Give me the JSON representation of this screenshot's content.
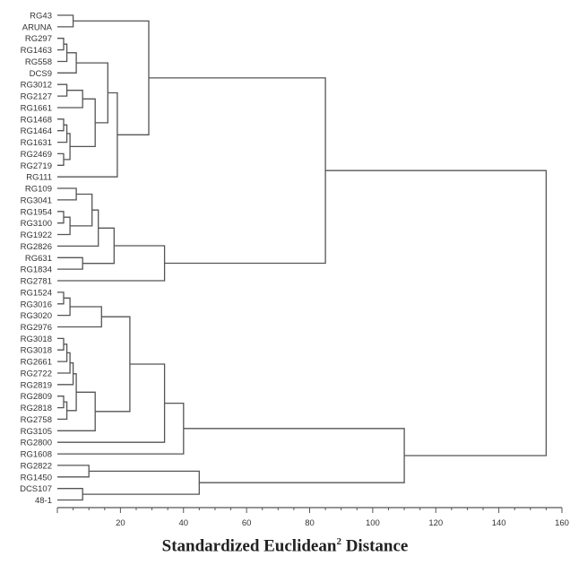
{
  "chart_data": {
    "type": "dendrogram",
    "xlabel": "Standardized Euclidean",
    "xlabel_sup": "2",
    "xlabel_suffix": " Distance",
    "xlim": [
      0,
      160
    ],
    "x_ticks": [
      20,
      40,
      60,
      80,
      100,
      120,
      140,
      160
    ],
    "x_tick_labels": [
      "20",
      "40",
      "60",
      "80",
      "100",
      "120",
      "140",
      "160"
    ],
    "leaves": [
      "RG43",
      "ARUNA",
      "RG297",
      "RG1463",
      "RG558",
      "DCS9",
      "RG3012",
      "RG2127",
      "RG1661",
      "RG1468",
      "RG1464",
      "RG1631",
      "RG2469",
      "RG2719",
      "RG111",
      "RG109",
      "RG3041",
      "RG1954",
      "RG3100",
      "RG1922",
      "RG2826",
      "RG631",
      "RG1834",
      "RG2781",
      "RG1524",
      "RG3016",
      "RG3020",
      "RG2976",
      "RG3018",
      "RG3018",
      "RG2661",
      "RG2722",
      "RG2819",
      "RG2809",
      "RG2818",
      "RG2758",
      "RG3105",
      "RG2800",
      "RG1608",
      "RG2822",
      "RG1450",
      "DCS107",
      "48-1"
    ],
    "merges": [
      [
        0,
        1,
        5
      ],
      [
        2,
        3,
        2
      ],
      [
        -2,
        4,
        3
      ],
      [
        -3,
        5,
        6
      ],
      [
        6,
        7,
        3
      ],
      [
        -5,
        8,
        8
      ],
      [
        9,
        10,
        2
      ],
      [
        -7,
        11,
        3
      ],
      [
        12,
        13,
        2
      ],
      [
        -8,
        -9,
        4
      ],
      [
        -6,
        -10,
        12
      ],
      [
        -4,
        -11,
        16
      ],
      [
        -12,
        14,
        19
      ],
      [
        -1,
        -13,
        29
      ],
      [
        15,
        16,
        6
      ],
      [
        17,
        18,
        2
      ],
      [
        -16,
        19,
        4
      ],
      [
        -15,
        -17,
        11
      ],
      [
        -18,
        20,
        13
      ],
      [
        21,
        22,
        8
      ],
      [
        -19,
        -20,
        18
      ],
      [
        -21,
        23,
        34
      ],
      [
        -14,
        -22,
        85
      ],
      [
        24,
        25,
        2
      ],
      [
        -24,
        26,
        4
      ],
      [
        -25,
        27,
        14
      ],
      [
        28,
        29,
        2
      ],
      [
        -27,
        30,
        3
      ],
      [
        -28,
        31,
        4
      ],
      [
        -29,
        32,
        5
      ],
      [
        33,
        34,
        2
      ],
      [
        -31,
        35,
        3
      ],
      [
        -30,
        -32,
        6
      ],
      [
        -33,
        36,
        12
      ],
      [
        -26,
        -34,
        23
      ],
      [
        -35,
        37,
        34
      ],
      [
        -36,
        38,
        40
      ],
      [
        39,
        40,
        10
      ],
      [
        41,
        42,
        8
      ],
      [
        -38,
        -39,
        45
      ],
      [
        -37,
        -40,
        110
      ],
      [
        -23,
        -41,
        155
      ]
    ]
  }
}
